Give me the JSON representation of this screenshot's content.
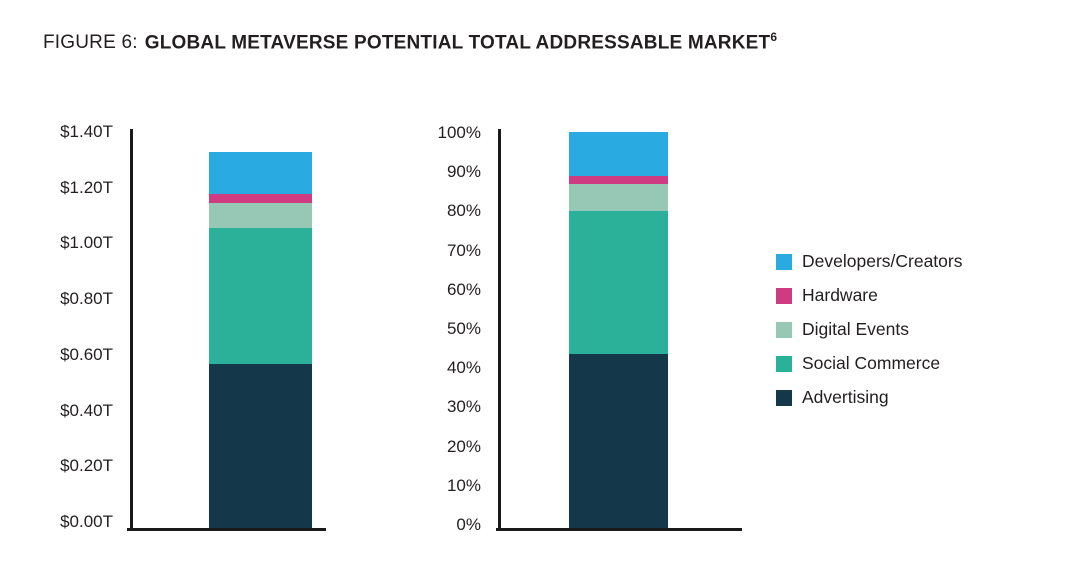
{
  "title": {
    "prefix": "FIGURE 6:",
    "main": "GLOBAL METAVERSE POTENTIAL TOTAL ADDRESSABLE MARKET",
    "footnote_superscript": "6"
  },
  "colors": {
    "advertising": "#14384a",
    "social_commerce": "#2bb199",
    "digital_events": "#96c8b5",
    "hardware": "#ce3b80",
    "developers_creators": "#29abe2",
    "text": "#231f20",
    "axis": "#1a1a1a"
  },
  "legend": {
    "position": "right",
    "items": [
      {
        "label": "Developers/Creators",
        "color": "#29abe2"
      },
      {
        "label": "Hardware",
        "color": "#ce3b80"
      },
      {
        "label": "Digital Events",
        "color": "#96c8b5"
      },
      {
        "label": "Social Commerce",
        "color": "#2bb199"
      },
      {
        "label": "Advertising",
        "color": "#14384a"
      }
    ]
  },
  "chart_data": [
    {
      "type": "bar",
      "subtype": "stacked-vertical",
      "title": "",
      "xlabel": "",
      "ylabel": "",
      "unit": "USD trillions",
      "categories": [
        "Global metaverse potential total addressable market"
      ],
      "series": [
        {
          "name": "Advertising",
          "color": "#14384a",
          "values": [
            0.58
          ]
        },
        {
          "name": "Social Commerce",
          "color": "#2bb199",
          "values": [
            0.48
          ]
        },
        {
          "name": "Digital Events",
          "color": "#96c8b5",
          "values": [
            0.09
          ]
        },
        {
          "name": "Hardware",
          "color": "#ce3b80",
          "values": [
            0.03
          ]
        },
        {
          "name": "Developers/Creators",
          "color": "#29abe2",
          "values": [
            0.15
          ]
        }
      ],
      "stack_order": "bottom-to-top",
      "total": "$1.33T",
      "ylim": [
        0,
        1.4
      ],
      "yticks": [
        "$1.40T",
        "$1.20T",
        "$1.00T",
        "$0.80T",
        "$0.60T",
        "$0.40T",
        "$0.20T",
        "$0.00T"
      ],
      "grid": false,
      "legend_position": "shared-right"
    },
    {
      "type": "bar",
      "subtype": "stacked-vertical",
      "title": "",
      "xlabel": "",
      "ylabel": "",
      "unit": "percent of total",
      "categories": [
        "Global metaverse potential total addressable market"
      ],
      "series": [
        {
          "name": "Advertising",
          "color": "#14384a",
          "values": [
            44
          ]
        },
        {
          "name": "Social Commerce",
          "color": "#2bb199",
          "values": [
            36
          ]
        },
        {
          "name": "Digital Events",
          "color": "#96c8b5",
          "values": [
            7
          ]
        },
        {
          "name": "Hardware",
          "color": "#ce3b80",
          "values": [
            2
          ]
        },
        {
          "name": "Developers/Creators",
          "color": "#29abe2",
          "values": [
            11
          ]
        }
      ],
      "stack_order": "bottom-to-top",
      "total": "100%",
      "ylim": [
        0,
        100
      ],
      "yticks": [
        "100%",
        "90%",
        "80%",
        "70%",
        "60%",
        "50%",
        "40%",
        "30%",
        "20%",
        "10%",
        "0%"
      ],
      "grid": false,
      "legend_position": "shared-right"
    }
  ]
}
